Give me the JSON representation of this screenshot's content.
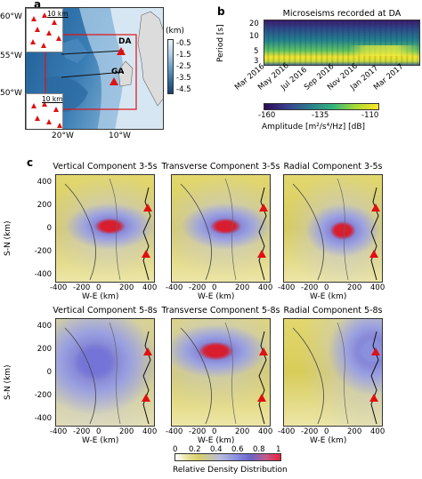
{
  "panels": {
    "a": {
      "letter": "a",
      "lat_ticks": [
        "60°W",
        "55°W",
        "50°W"
      ],
      "lon_ticks": [
        "20°W",
        "10°W"
      ],
      "inset_scale": "10 km",
      "station_da": "DA",
      "station_ga": "GA",
      "colorbar_unit": "(km)",
      "colorbar_ticks": [
        "-0.5",
        "-1.5",
        "-2.5",
        "-3.5",
        "-4.5"
      ]
    },
    "b": {
      "letter": "b",
      "title": "Microseisms recorded at DA",
      "ylabel": "Period [s]",
      "yticks": [
        "20",
        "10",
        "5",
        "3"
      ],
      "xticks": [
        "Mar 2016",
        "May 2016",
        "Jul 2016",
        "Sep 2016",
        "Nov 2016",
        "Jan 2017",
        "Mar 2017"
      ],
      "colorbar_ticks": [
        "-160",
        "-135",
        "-110"
      ],
      "colorbar_label": "Amplitude [m²/s⁴/Hz] [dB]"
    },
    "c": {
      "letter": "c",
      "ylabel": "S-N (km)",
      "xlabel": "W-E (km)",
      "yticks": [
        "400",
        "200",
        "0",
        "-200",
        "-400"
      ],
      "xticks": [
        "-400",
        "-200",
        "0",
        "200",
        "400"
      ],
      "maps": [
        {
          "title": "Vertical Component 3-5s"
        },
        {
          "title": "Transverse Component 3-5s"
        },
        {
          "title": "Radial Component 3-5s"
        },
        {
          "title": "Vertical Component 5-8s"
        },
        {
          "title": "Transverse Component 5-8s"
        },
        {
          "title": "Radial Component 5-8s"
        }
      ],
      "colorbar_ticks": [
        "0",
        "0.2",
        "0.4",
        "0.6",
        "0.8",
        "1"
      ],
      "colorbar_label": "Relative Density Distribution"
    }
  },
  "colors": {
    "station": "#e01010",
    "inset_box": "#e01010"
  }
}
